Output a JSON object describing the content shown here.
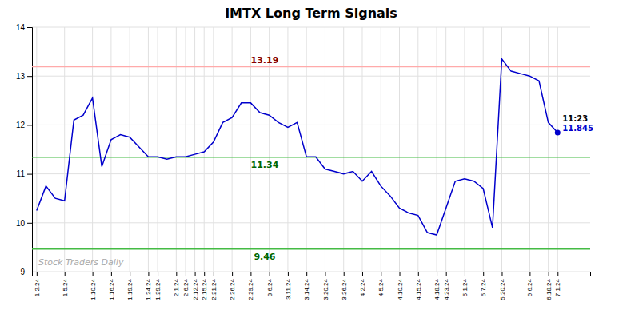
{
  "chart_data": {
    "type": "line",
    "title": "IMTX Long Term Signals",
    "watermark": "Stock Traders Daily",
    "categories": [
      "1.2.24",
      null,
      null,
      "1.5.24",
      null,
      null,
      "1.10.24",
      null,
      "1.16.24",
      null,
      "1.19.24",
      null,
      "1.24.24",
      "1.29.24",
      null,
      "2.1.24",
      "2.6.24",
      "2.12.24",
      "2.15.24",
      "2.21.24",
      null,
      "2.26.24",
      null,
      "2.29.24",
      null,
      "3.6.24",
      null,
      "3.11.24",
      null,
      "3.14.24",
      null,
      "3.20.24",
      null,
      "3.26.24",
      null,
      "4.2.24",
      null,
      "4.5.24",
      null,
      "4.10.24",
      null,
      "4.15.24",
      null,
      "4.18.24",
      "4.23.24",
      null,
      "5.1.24",
      null,
      "5.7.24",
      null,
      "5.20.24",
      null,
      null,
      "6.6.24",
      null,
      "6.18.24",
      "7.1.24"
    ],
    "values": [
      10.25,
      10.75,
      10.5,
      10.45,
      12.1,
      12.2,
      12.55,
      11.15,
      11.7,
      11.8,
      11.75,
      11.55,
      11.35,
      11.35,
      11.3,
      11.35,
      11.35,
      11.4,
      11.45,
      11.65,
      12.05,
      12.15,
      12.45,
      12.45,
      12.25,
      12.2,
      12.05,
      11.95,
      12.05,
      11.35,
      11.35,
      11.1,
      11.05,
      11.0,
      11.05,
      10.85,
      11.05,
      10.75,
      10.55,
      10.3,
      10.2,
      10.15,
      9.8,
      9.75,
      10.3,
      10.85,
      10.9,
      10.85,
      10.7,
      9.9,
      13.35,
      13.1,
      13.05,
      13.0,
      12.9,
      12.05,
      11.845
    ],
    "color": "#0000cc",
    "reference_lines": [
      {
        "value": 13.19,
        "label": "13.19",
        "color": "#ffaaaa",
        "label_color": "#880000"
      },
      {
        "value": 11.34,
        "label": "11.34",
        "color": "#44bb44",
        "label_color": "#006600"
      },
      {
        "value": 9.46,
        "label": "9.46",
        "color": "#44bb44",
        "label_color": "#006600"
      }
    ],
    "annotations": [
      {
        "text": "11:23"
      },
      {
        "text": "11.845"
      }
    ],
    "ylim": [
      9.0,
      14.0
    ],
    "yticks": [
      9,
      10,
      11,
      12,
      13,
      14
    ],
    "grid": true
  }
}
